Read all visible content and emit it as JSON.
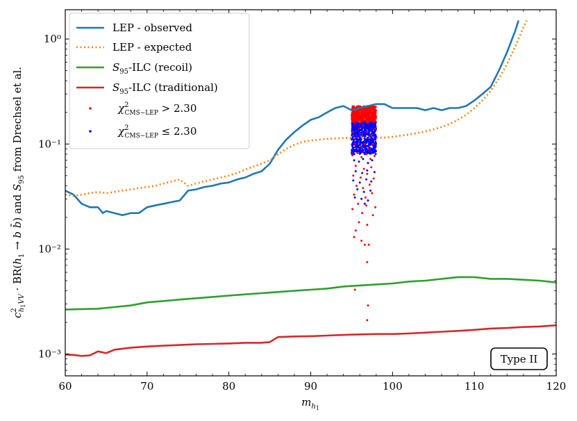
{
  "chart_data": {
    "type": "line",
    "xlabel": "m_{h_1}",
    "ylabel": "c²_{h₁VV} · BR(h₁ → b b̄) and S₉₅ from Drechsel et al.",
    "xlim": [
      60,
      120
    ],
    "ylim": [
      0.00062,
      1.9
    ],
    "yscale": "log",
    "xticks": [
      60,
      70,
      80,
      90,
      100,
      110,
      120
    ],
    "xtick_labels": [
      "60",
      "70",
      "80",
      "90",
      "100",
      "110",
      "120"
    ],
    "yticks": [
      0.001,
      0.01,
      0.1,
      1
    ],
    "ytick_labels": [
      "10⁻³",
      "10⁻²",
      "10⁻¹",
      "10⁰"
    ],
    "grid": false,
    "legend_position": "top-left",
    "annotation": "Type II",
    "colors": {
      "observed": "#1f77b4",
      "expected": "#ff7f0e",
      "recoil": "#2ca02c",
      "traditional": "#d62728",
      "excluded": "#ff0000",
      "allowed": "#0000ff"
    },
    "series": [
      {
        "name": "LEP - observed",
        "style": "solid",
        "color": "#1f77b4",
        "x": [
          60,
          61,
          62,
          63,
          64,
          64.6,
          65,
          66,
          67,
          68,
          69,
          70,
          71,
          72,
          73,
          74,
          75,
          76,
          77,
          78,
          79,
          80,
          81,
          82,
          83,
          84,
          85,
          86,
          87,
          88,
          89,
          90,
          91,
          92,
          93,
          94,
          95,
          96,
          97,
          98,
          99,
          100,
          101,
          102,
          103,
          104,
          105,
          106,
          107,
          108,
          109,
          110,
          111,
          112,
          113,
          114,
          115,
          115.4
        ],
        "y": [
          0.036,
          0.033,
          0.027,
          0.025,
          0.025,
          0.022,
          0.023,
          0.022,
          0.021,
          0.022,
          0.022,
          0.025,
          0.026,
          0.027,
          0.028,
          0.029,
          0.036,
          0.037,
          0.039,
          0.04,
          0.042,
          0.043,
          0.046,
          0.048,
          0.052,
          0.055,
          0.065,
          0.088,
          0.11,
          0.13,
          0.15,
          0.17,
          0.18,
          0.2,
          0.22,
          0.23,
          0.21,
          0.22,
          0.23,
          0.24,
          0.24,
          0.22,
          0.22,
          0.22,
          0.22,
          0.21,
          0.22,
          0.21,
          0.22,
          0.22,
          0.23,
          0.26,
          0.3,
          0.35,
          0.5,
          0.75,
          1.2,
          1.5
        ]
      },
      {
        "name": "LEP - expected",
        "style": "dotted",
        "color": "#ff7f0e",
        "x": [
          60,
          61,
          62,
          63,
          64,
          65,
          66,
          67,
          68,
          69,
          70,
          71,
          72,
          73,
          74,
          75,
          76,
          77,
          78,
          79,
          80,
          81,
          82,
          83,
          84,
          85,
          86,
          87,
          88,
          89,
          90,
          91,
          92,
          93,
          94,
          95,
          96,
          97,
          98,
          99,
          100,
          101,
          102,
          103,
          104,
          105,
          106,
          107,
          108,
          109,
          110,
          111,
          112,
          113,
          114,
          115,
          116,
          116.4
        ],
        "y": [
          0.033,
          0.032,
          0.033,
          0.034,
          0.035,
          0.034,
          0.035,
          0.036,
          0.037,
          0.038,
          0.039,
          0.04,
          0.042,
          0.044,
          0.046,
          0.04,
          0.042,
          0.044,
          0.046,
          0.048,
          0.05,
          0.053,
          0.057,
          0.061,
          0.065,
          0.07,
          0.08,
          0.09,
          0.098,
          0.105,
          0.108,
          0.11,
          0.112,
          0.113,
          0.114,
          0.114,
          0.115,
          0.115,
          0.115,
          0.115,
          0.117,
          0.12,
          0.123,
          0.127,
          0.132,
          0.138,
          0.145,
          0.155,
          0.17,
          0.19,
          0.22,
          0.26,
          0.32,
          0.42,
          0.58,
          0.85,
          1.3,
          1.5
        ]
      },
      {
        "name": "S_95-ILC (recoil)",
        "style": "solid",
        "color": "#2ca02c",
        "x": [
          60,
          62,
          64,
          66,
          68,
          70,
          72,
          74,
          76,
          78,
          80,
          82,
          84,
          86,
          88,
          90,
          92,
          94,
          96,
          98,
          100,
          102,
          104,
          106,
          108,
          110,
          112,
          114,
          116,
          118,
          120
        ],
        "y": [
          0.00265,
          0.00268,
          0.0027,
          0.0028,
          0.0029,
          0.0031,
          0.0032,
          0.0033,
          0.0034,
          0.0035,
          0.0036,
          0.0037,
          0.0038,
          0.0039,
          0.004,
          0.0041,
          0.0042,
          0.0044,
          0.0045,
          0.0046,
          0.0047,
          0.0049,
          0.005,
          0.0052,
          0.0054,
          0.0054,
          0.0052,
          0.0052,
          0.0051,
          0.005,
          0.0048
        ]
      },
      {
        "name": "S_95-ILC (traditional)",
        "style": "solid",
        "color": "#d62728",
        "x": [
          60,
          61,
          62,
          63,
          64,
          65,
          66,
          68,
          70,
          72,
          74,
          76,
          78,
          80,
          82,
          84,
          85,
          86,
          88,
          90,
          92,
          94,
          96,
          98,
          100,
          102,
          104,
          106,
          108,
          110,
          112,
          114,
          116,
          118,
          120
        ],
        "y": [
          0.00099,
          0.00098,
          0.00096,
          0.00097,
          0.00106,
          0.00102,
          0.0011,
          0.00115,
          0.00118,
          0.0012,
          0.00122,
          0.00124,
          0.00125,
          0.00126,
          0.00128,
          0.00128,
          0.0013,
          0.00145,
          0.00147,
          0.00148,
          0.0015,
          0.00152,
          0.00154,
          0.00155,
          0.00155,
          0.00157,
          0.0016,
          0.00163,
          0.00166,
          0.0017,
          0.00175,
          0.00177,
          0.00181,
          0.00183,
          0.00188
        ]
      }
    ],
    "scatter_series": [
      {
        "name": "χ²_CMS−LEP > 2.30",
        "color": "#ff0000",
        "points": [
          {
            "x": 95.1,
            "y": 0.21
          },
          {
            "x": 95.6,
            "y": 0.19
          },
          {
            "x": 96.1,
            "y": 0.2
          },
          {
            "x": 96.7,
            "y": 0.18
          },
          {
            "x": 97.2,
            "y": 0.22
          },
          {
            "x": 97.7,
            "y": 0.19
          },
          {
            "x": 95.3,
            "y": 0.16
          },
          {
            "x": 95.9,
            "y": 0.17
          },
          {
            "x": 96.4,
            "y": 0.15
          },
          {
            "x": 97.0,
            "y": 0.16
          },
          {
            "x": 97.5,
            "y": 0.17
          },
          {
            "x": 95.2,
            "y": 0.13
          },
          {
            "x": 95.8,
            "y": 0.14
          },
          {
            "x": 96.3,
            "y": 0.12
          },
          {
            "x": 96.9,
            "y": 0.13
          },
          {
            "x": 97.4,
            "y": 0.12
          },
          {
            "x": 97.9,
            "y": 0.14
          },
          {
            "x": 95.4,
            "y": 0.1
          },
          {
            "x": 96.0,
            "y": 0.095
          },
          {
            "x": 96.6,
            "y": 0.1
          },
          {
            "x": 97.1,
            "y": 0.09
          },
          {
            "x": 97.6,
            "y": 0.1
          },
          {
            "x": 95.1,
            "y": 0.078
          },
          {
            "x": 95.7,
            "y": 0.082
          },
          {
            "x": 96.2,
            "y": 0.075
          },
          {
            "x": 96.8,
            "y": 0.08
          },
          {
            "x": 97.3,
            "y": 0.072
          },
          {
            "x": 97.8,
            "y": 0.077
          },
          {
            "x": 95.5,
            "y": 0.062
          },
          {
            "x": 96.5,
            "y": 0.058
          },
          {
            "x": 97.4,
            "y": 0.06
          },
          {
            "x": 95.2,
            "y": 0.05
          },
          {
            "x": 96.1,
            "y": 0.048
          },
          {
            "x": 96.9,
            "y": 0.052
          },
          {
            "x": 97.7,
            "y": 0.047
          },
          {
            "x": 95.6,
            "y": 0.04
          },
          {
            "x": 96.4,
            "y": 0.038
          },
          {
            "x": 97.2,
            "y": 0.041
          },
          {
            "x": 95.3,
            "y": 0.033
          },
          {
            "x": 96.7,
            "y": 0.031
          },
          {
            "x": 97.5,
            "y": 0.034
          },
          {
            "x": 95.8,
            "y": 0.027
          },
          {
            "x": 96.8,
            "y": 0.026
          },
          {
            "x": 97.9,
            "y": 0.025
          },
          {
            "x": 95.1,
            "y": 0.024
          },
          {
            "x": 96.3,
            "y": 0.022
          },
          {
            "x": 97.6,
            "y": 0.021
          },
          {
            "x": 95.9,
            "y": 0.018
          },
          {
            "x": 96.9,
            "y": 0.017
          },
          {
            "x": 95.5,
            "y": 0.015
          },
          {
            "x": 96.2,
            "y": 0.012
          },
          {
            "x": 95.3,
            "y": 0.013
          },
          {
            "x": 96.6,
            "y": 0.011
          },
          {
            "x": 97.1,
            "y": 0.011
          },
          {
            "x": 96.9,
            "y": 0.0075
          },
          {
            "x": 95.4,
            "y": 0.0041
          },
          {
            "x": 97.0,
            "y": 0.0029
          },
          {
            "x": 96.9,
            "y": 0.0021
          }
        ]
      },
      {
        "name": "χ²_CMS−LEP ≤ 2.30",
        "color": "#0000ff",
        "points": [
          {
            "x": 95.2,
            "y": 0.15
          },
          {
            "x": 95.7,
            "y": 0.14
          },
          {
            "x": 96.2,
            "y": 0.15
          },
          {
            "x": 96.8,
            "y": 0.14
          },
          {
            "x": 97.3,
            "y": 0.15
          },
          {
            "x": 97.8,
            "y": 0.13
          },
          {
            "x": 95.4,
            "y": 0.12
          },
          {
            "x": 96.0,
            "y": 0.11
          },
          {
            "x": 96.5,
            "y": 0.12
          },
          {
            "x": 97.1,
            "y": 0.11
          },
          {
            "x": 97.6,
            "y": 0.12
          },
          {
            "x": 95.1,
            "y": 0.095
          },
          {
            "x": 95.6,
            "y": 0.09
          },
          {
            "x": 96.1,
            "y": 0.085
          },
          {
            "x": 96.7,
            "y": 0.092
          },
          {
            "x": 97.2,
            "y": 0.088
          },
          {
            "x": 97.7,
            "y": 0.09
          },
          {
            "x": 95.3,
            "y": 0.07
          },
          {
            "x": 95.9,
            "y": 0.068
          },
          {
            "x": 96.4,
            "y": 0.072
          },
          {
            "x": 97.0,
            "y": 0.066
          },
          {
            "x": 97.5,
            "y": 0.07
          },
          {
            "x": 95.5,
            "y": 0.055
          },
          {
            "x": 96.3,
            "y": 0.053
          },
          {
            "x": 96.9,
            "y": 0.056
          },
          {
            "x": 97.8,
            "y": 0.054
          },
          {
            "x": 95.2,
            "y": 0.045
          },
          {
            "x": 96.0,
            "y": 0.043
          },
          {
            "x": 96.8,
            "y": 0.046
          },
          {
            "x": 97.4,
            "y": 0.044
          },
          {
            "x": 95.7,
            "y": 0.037
          },
          {
            "x": 96.5,
            "y": 0.035
          },
          {
            "x": 97.3,
            "y": 0.036
          },
          {
            "x": 95.4,
            "y": 0.031
          },
          {
            "x": 96.2,
            "y": 0.03
          },
          {
            "x": 97.0,
            "y": 0.029
          },
          {
            "x": 96.6,
            "y": 0.027
          }
        ]
      }
    ],
    "scatter_band": {
      "x_range": [
        95,
        98
      ],
      "excluded_y_range": [
        0.15,
        0.23
      ],
      "allowed_y_range": [
        0.08,
        0.16
      ]
    }
  }
}
